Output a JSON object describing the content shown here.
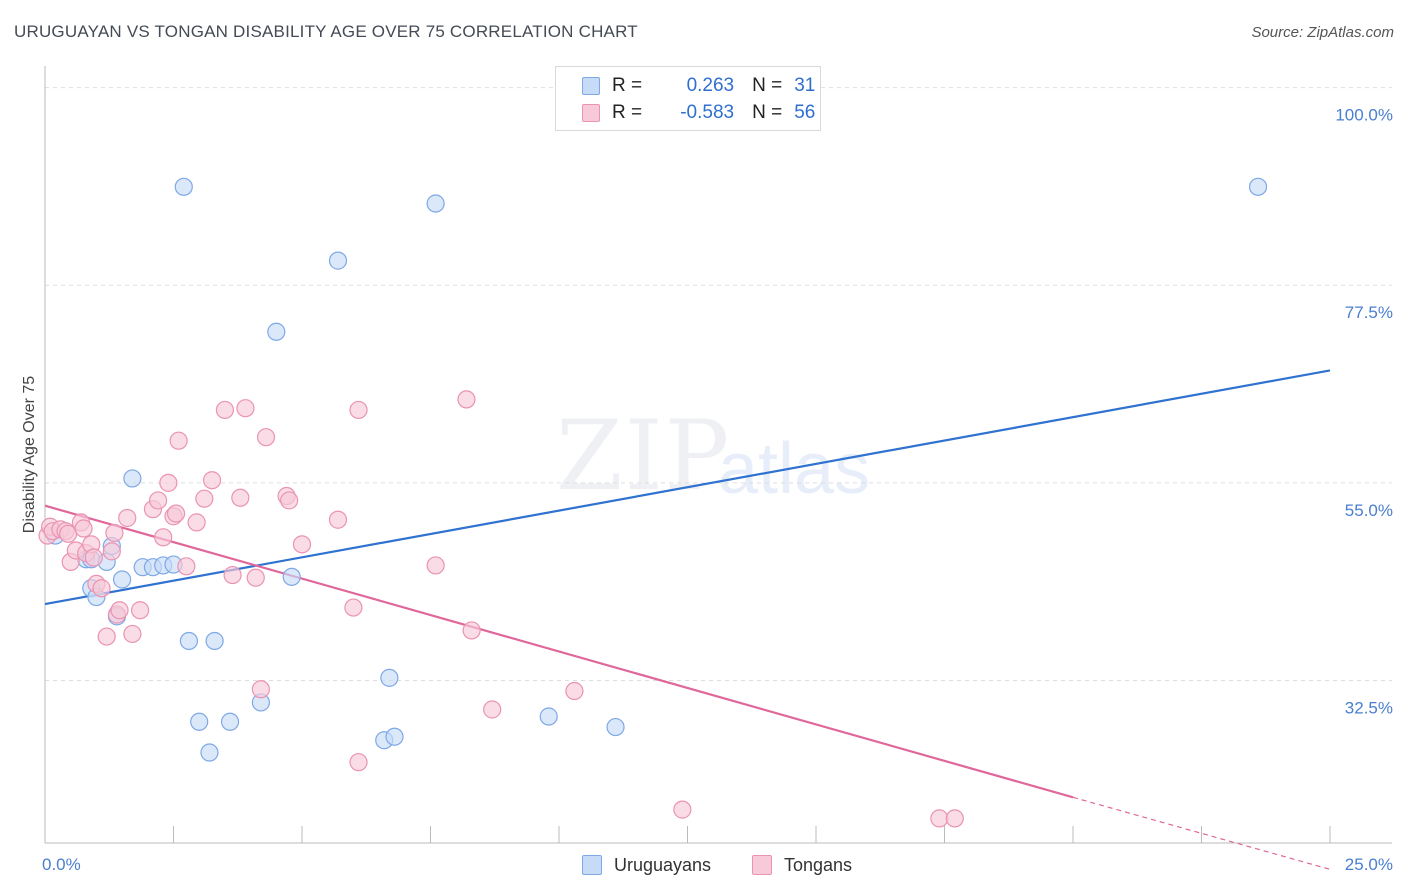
{
  "title": "URUGUAYAN VS TONGAN DISABILITY AGE OVER 75 CORRELATION CHART",
  "source": "Source: ZipAtlas.com",
  "watermark": {
    "zip": "ZIP",
    "atlas": "atlas"
  },
  "legend": {
    "rows": [
      {
        "r_label": "R =",
        "r_value": "0.263",
        "n_label": "N =",
        "n_value": "31"
      },
      {
        "r_label": "R =",
        "r_value": "-0.583",
        "n_label": "N =",
        "n_value": "56"
      }
    ]
  },
  "bottom_legend": [
    "Uruguayans",
    "Tongans"
  ],
  "colors": {
    "blue_fill": "#c6dbf7",
    "blue_stroke": "#7ea8e6",
    "blue_line": "#2f72d0",
    "pink_fill": "#f8c9d8",
    "pink_stroke": "#ea93b2",
    "pink_line": "#e0679a",
    "grid": "#dddddd",
    "axis_text": "#4a7fd0"
  },
  "chart_data": {
    "type": "scatter",
    "title": "URUGUAYAN VS TONGAN DISABILITY AGE OVER 75 CORRELATION CHART",
    "xlabel": "",
    "ylabel": "Disability Age Over 75",
    "xlim": [
      0,
      25
    ],
    "ylim": [
      14,
      102
    ],
    "x_tick_labels": [
      "0.0%",
      "25.0%"
    ],
    "y_ticks": [
      32.5,
      55.0,
      77.5,
      100.0
    ],
    "y_tick_labels": [
      "32.5%",
      "55.0%",
      "77.5%",
      "100.0%"
    ],
    "series": [
      {
        "name": "Uruguayans",
        "points": [
          [
            0.2,
            49.0
          ],
          [
            0.8,
            46.3
          ],
          [
            0.9,
            46.3
          ],
          [
            1.2,
            46.0
          ],
          [
            0.9,
            43.0
          ],
          [
            1.0,
            42.0
          ],
          [
            1.3,
            47.8
          ],
          [
            1.4,
            39.8
          ],
          [
            1.5,
            44.0
          ],
          [
            1.7,
            55.5
          ],
          [
            1.9,
            45.4
          ],
          [
            2.1,
            45.4
          ],
          [
            2.3,
            45.6
          ],
          [
            2.5,
            45.7
          ],
          [
            2.7,
            88.7
          ],
          [
            2.8,
            37.0
          ],
          [
            3.0,
            27.8
          ],
          [
            3.2,
            24.3
          ],
          [
            3.3,
            37.0
          ],
          [
            3.6,
            27.8
          ],
          [
            4.2,
            30.0
          ],
          [
            4.5,
            72.2
          ],
          [
            4.8,
            44.3
          ],
          [
            5.7,
            80.3
          ],
          [
            6.6,
            25.7
          ],
          [
            6.7,
            32.8
          ],
          [
            6.8,
            26.1
          ],
          [
            7.6,
            86.8
          ],
          [
            9.8,
            28.4
          ],
          [
            11.1,
            27.2
          ],
          [
            23.6,
            88.7
          ]
        ]
      },
      {
        "name": "Tongans",
        "points": [
          [
            0.05,
            49.0
          ],
          [
            0.1,
            50.0
          ],
          [
            0.15,
            49.5
          ],
          [
            0.3,
            49.7
          ],
          [
            0.4,
            49.5
          ],
          [
            0.45,
            49.2
          ],
          [
            0.5,
            46.0
          ],
          [
            0.6,
            47.3
          ],
          [
            0.7,
            50.5
          ],
          [
            0.75,
            49.8
          ],
          [
            0.8,
            47.0
          ],
          [
            0.9,
            48.0
          ],
          [
            0.95,
            46.5
          ],
          [
            1.0,
            43.5
          ],
          [
            1.1,
            43.0
          ],
          [
            1.2,
            37.5
          ],
          [
            1.3,
            47.2
          ],
          [
            1.35,
            49.3
          ],
          [
            1.4,
            40.0
          ],
          [
            1.45,
            40.5
          ],
          [
            1.6,
            51.0
          ],
          [
            1.7,
            37.8
          ],
          [
            1.85,
            40.5
          ],
          [
            2.1,
            52.0
          ],
          [
            2.2,
            53.0
          ],
          [
            2.3,
            48.8
          ],
          [
            2.4,
            55.0
          ],
          [
            2.5,
            51.2
          ],
          [
            2.55,
            51.5
          ],
          [
            2.6,
            59.8
          ],
          [
            2.75,
            45.5
          ],
          [
            2.95,
            50.5
          ],
          [
            3.1,
            53.2
          ],
          [
            3.25,
            55.3
          ],
          [
            3.5,
            63.3
          ],
          [
            3.65,
            44.5
          ],
          [
            3.8,
            53.3
          ],
          [
            3.9,
            63.5
          ],
          [
            4.1,
            44.2
          ],
          [
            4.2,
            31.5
          ],
          [
            4.3,
            60.2
          ],
          [
            4.7,
            53.5
          ],
          [
            4.75,
            53.0
          ],
          [
            5.0,
            48.0
          ],
          [
            5.7,
            50.8
          ],
          [
            6.0,
            40.8
          ],
          [
            6.1,
            63.3
          ],
          [
            6.1,
            23.2
          ],
          [
            7.6,
            45.6
          ],
          [
            8.2,
            64.5
          ],
          [
            8.3,
            38.2
          ],
          [
            8.7,
            29.2
          ],
          [
            10.3,
            31.3
          ],
          [
            12.4,
            17.8
          ],
          [
            17.4,
            16.8
          ],
          [
            17.7,
            16.8
          ]
        ]
      }
    ],
    "trend_lines": [
      {
        "series": "Uruguayans",
        "from": [
          0,
          41.2
        ],
        "to": [
          25,
          67.8
        ]
      },
      {
        "series": "Tongans",
        "from": [
          0,
          52.4
        ],
        "to": [
          20,
          19.2
        ],
        "dashed_to": [
          25,
          11.0
        ]
      }
    ]
  }
}
